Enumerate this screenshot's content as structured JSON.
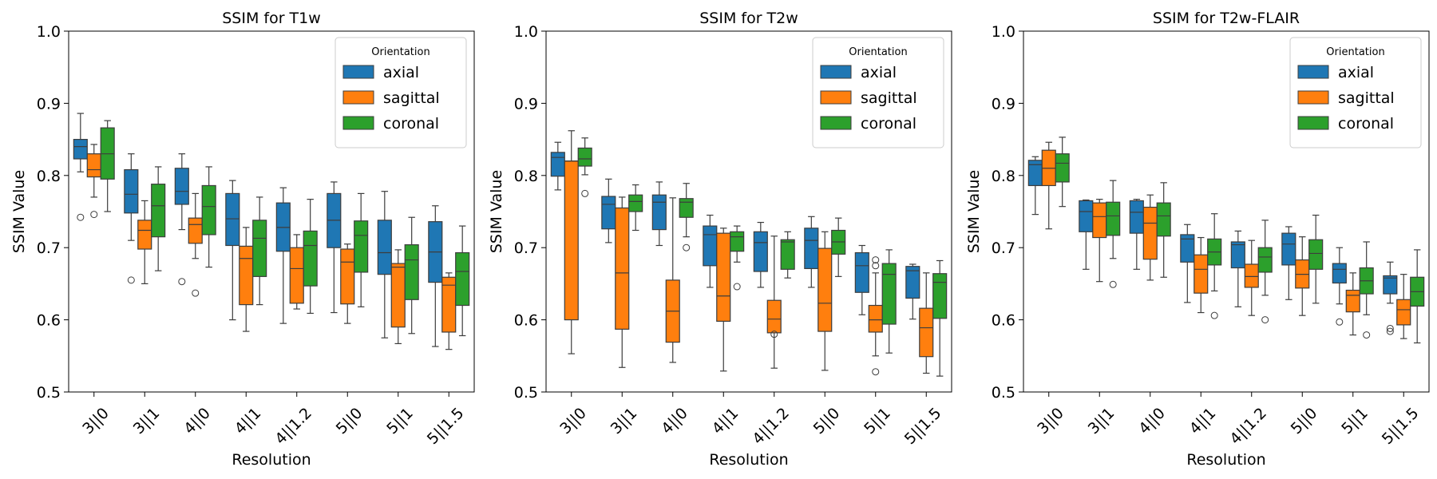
{
  "chart_data": [
    {
      "type": "boxplot",
      "title": "SSIM for T1w",
      "xlabel": "Resolution",
      "ylabel": "SSIM Value",
      "ylim": [
        0.5,
        1.0
      ],
      "yticks": [
        "0.5",
        "0.6",
        "0.7",
        "0.8",
        "0.9",
        "1.0"
      ],
      "categories": [
        "3||0",
        "3||1",
        "4||0",
        "4||1",
        "4||1.2",
        "5||0",
        "5||1",
        "5||1.5"
      ],
      "legend": {
        "title": "Orientation",
        "position": "top-right"
      },
      "series": [
        {
          "name": "axial",
          "color": "#1f77b4",
          "boxes": [
            {
              "lw": 0.805,
              "q1": 0.823,
              "med": 0.84,
              "q3": 0.85,
              "uw": 0.886,
              "fliers": [
                0.742
              ]
            },
            {
              "lw": 0.71,
              "q1": 0.748,
              "med": 0.774,
              "q3": 0.808,
              "uw": 0.83,
              "fliers": [
                0.655
              ]
            },
            {
              "lw": 0.725,
              "q1": 0.76,
              "med": 0.778,
              "q3": 0.81,
              "uw": 0.83,
              "fliers": [
                0.653
              ]
            },
            {
              "lw": 0.6,
              "q1": 0.703,
              "med": 0.74,
              "q3": 0.775,
              "uw": 0.793,
              "fliers": []
            },
            {
              "lw": 0.595,
              "q1": 0.695,
              "med": 0.728,
              "q3": 0.762,
              "uw": 0.783,
              "fliers": []
            },
            {
              "lw": 0.61,
              "q1": 0.7,
              "med": 0.738,
              "q3": 0.775,
              "uw": 0.791,
              "fliers": []
            },
            {
              "lw": 0.575,
              "q1": 0.663,
              "med": 0.693,
              "q3": 0.738,
              "uw": 0.778,
              "fliers": []
            },
            {
              "lw": 0.563,
              "q1": 0.652,
              "med": 0.694,
              "q3": 0.736,
              "uw": 0.758,
              "fliers": []
            }
          ]
        },
        {
          "name": "sagittal",
          "color": "#ff7f0e",
          "boxes": [
            {
              "lw": 0.77,
              "q1": 0.798,
              "med": 0.808,
              "q3": 0.83,
              "uw": 0.843,
              "fliers": [
                0.746
              ]
            },
            {
              "lw": 0.65,
              "q1": 0.698,
              "med": 0.724,
              "q3": 0.738,
              "uw": 0.765,
              "fliers": []
            },
            {
              "lw": 0.685,
              "q1": 0.706,
              "med": 0.732,
              "q3": 0.741,
              "uw": 0.775,
              "fliers": [
                0.637
              ]
            },
            {
              "lw": 0.584,
              "q1": 0.621,
              "med": 0.685,
              "q3": 0.702,
              "uw": 0.728,
              "fliers": []
            },
            {
              "lw": 0.615,
              "q1": 0.623,
              "med": 0.671,
              "q3": 0.7,
              "uw": 0.718,
              "fliers": []
            },
            {
              "lw": 0.595,
              "q1": 0.622,
              "med": 0.68,
              "q3": 0.698,
              "uw": 0.705,
              "fliers": []
            },
            {
              "lw": 0.567,
              "q1": 0.59,
              "med": 0.673,
              "q3": 0.678,
              "uw": 0.697,
              "fliers": []
            },
            {
              "lw": 0.559,
              "q1": 0.583,
              "med": 0.648,
              "q3": 0.659,
              "uw": 0.665,
              "fliers": []
            }
          ]
        },
        {
          "name": "coronal",
          "color": "#2ca02c",
          "boxes": [
            {
              "lw": 0.75,
              "q1": 0.795,
              "med": 0.83,
              "q3": 0.866,
              "uw": 0.876,
              "fliers": []
            },
            {
              "lw": 0.668,
              "q1": 0.715,
              "med": 0.758,
              "q3": 0.788,
              "uw": 0.812,
              "fliers": []
            },
            {
              "lw": 0.673,
              "q1": 0.718,
              "med": 0.757,
              "q3": 0.786,
              "uw": 0.812,
              "fliers": []
            },
            {
              "lw": 0.621,
              "q1": 0.66,
              "med": 0.713,
              "q3": 0.738,
              "uw": 0.77,
              "fliers": []
            },
            {
              "lw": 0.609,
              "q1": 0.647,
              "med": 0.703,
              "q3": 0.723,
              "uw": 0.767,
              "fliers": []
            },
            {
              "lw": 0.618,
              "q1": 0.666,
              "med": 0.717,
              "q3": 0.737,
              "uw": 0.775,
              "fliers": []
            },
            {
              "lw": 0.581,
              "q1": 0.628,
              "med": 0.683,
              "q3": 0.704,
              "uw": 0.742,
              "fliers": []
            },
            {
              "lw": 0.578,
              "q1": 0.62,
              "med": 0.667,
              "q3": 0.693,
              "uw": 0.73,
              "fliers": []
            }
          ]
        }
      ]
    },
    {
      "type": "boxplot",
      "title": "SSIM for T2w",
      "xlabel": "Resolution",
      "ylabel": "SSIM Value",
      "ylim": [
        0.5,
        1.0
      ],
      "yticks": [
        "0.5",
        "0.6",
        "0.7",
        "0.8",
        "0.9",
        "1.0"
      ],
      "categories": [
        "3||0",
        "3||1",
        "4||0",
        "4||1",
        "4||1.2",
        "5||0",
        "5||1",
        "5||1.5"
      ],
      "legend": {
        "title": "Orientation",
        "position": "top-right"
      },
      "series": [
        {
          "name": "axial",
          "color": "#1f77b4",
          "boxes": [
            {
              "lw": 0.78,
              "q1": 0.799,
              "med": 0.825,
              "q3": 0.832,
              "uw": 0.846,
              "fliers": []
            },
            {
              "lw": 0.707,
              "q1": 0.726,
              "med": 0.76,
              "q3": 0.771,
              "uw": 0.795,
              "fliers": []
            },
            {
              "lw": 0.703,
              "q1": 0.725,
              "med": 0.763,
              "q3": 0.773,
              "uw": 0.791,
              "fliers": []
            },
            {
              "lw": 0.645,
              "q1": 0.675,
              "med": 0.718,
              "q3": 0.73,
              "uw": 0.745,
              "fliers": []
            },
            {
              "lw": 0.645,
              "q1": 0.667,
              "med": 0.707,
              "q3": 0.722,
              "uw": 0.735,
              "fliers": []
            },
            {
              "lw": 0.645,
              "q1": 0.671,
              "med": 0.71,
              "q3": 0.727,
              "uw": 0.743,
              "fliers": []
            },
            {
              "lw": 0.607,
              "q1": 0.638,
              "med": 0.675,
              "q3": 0.693,
              "uw": 0.703,
              "fliers": []
            },
            {
              "lw": 0.601,
              "q1": 0.63,
              "med": 0.668,
              "q3": 0.674,
              "uw": 0.677,
              "fliers": []
            }
          ]
        },
        {
          "name": "sagittal",
          "color": "#ff7f0e",
          "boxes": [
            {
              "lw": 0.553,
              "q1": 0.6,
              "med": 0.82,
              "q3": 0.82,
              "uw": 0.862,
              "fliers": []
            },
            {
              "lw": 0.534,
              "q1": 0.587,
              "med": 0.665,
              "q3": 0.755,
              "uw": 0.77,
              "fliers": []
            },
            {
              "lw": 0.541,
              "q1": 0.569,
              "med": 0.612,
              "q3": 0.655,
              "uw": 0.769,
              "fliers": []
            },
            {
              "lw": 0.529,
              "q1": 0.598,
              "med": 0.633,
              "q3": 0.72,
              "uw": 0.727,
              "fliers": []
            },
            {
              "lw": 0.533,
              "q1": 0.582,
              "med": 0.601,
              "q3": 0.627,
              "uw": 0.716,
              "fliers": [
                0.58
              ]
            },
            {
              "lw": 0.53,
              "q1": 0.584,
              "med": 0.623,
              "q3": 0.699,
              "uw": 0.722,
              "fliers": []
            },
            {
              "lw": 0.55,
              "q1": 0.583,
              "med": 0.6,
              "q3": 0.62,
              "uw": 0.665,
              "fliers": [
                0.683,
                0.675,
                0.528
              ]
            },
            {
              "lw": 0.526,
              "q1": 0.549,
              "med": 0.589,
              "q3": 0.616,
              "uw": 0.665,
              "fliers": []
            }
          ]
        },
        {
          "name": "coronal",
          "color": "#2ca02c",
          "boxes": [
            {
              "lw": 0.801,
              "q1": 0.813,
              "med": 0.823,
              "q3": 0.838,
              "uw": 0.852,
              "fliers": [
                0.775
              ]
            },
            {
              "lw": 0.724,
              "q1": 0.75,
              "med": 0.764,
              "q3": 0.773,
              "uw": 0.787,
              "fliers": []
            },
            {
              "lw": 0.715,
              "q1": 0.742,
              "med": 0.763,
              "q3": 0.768,
              "uw": 0.789,
              "fliers": [
                0.7
              ]
            },
            {
              "lw": 0.68,
              "q1": 0.695,
              "med": 0.715,
              "q3": 0.722,
              "uw": 0.73,
              "fliers": [
                0.646
              ]
            },
            {
              "lw": 0.658,
              "q1": 0.67,
              "med": 0.708,
              "q3": 0.711,
              "uw": 0.722,
              "fliers": []
            },
            {
              "lw": 0.66,
              "q1": 0.691,
              "med": 0.708,
              "q3": 0.724,
              "uw": 0.741,
              "fliers": []
            },
            {
              "lw": 0.554,
              "q1": 0.594,
              "med": 0.663,
              "q3": 0.678,
              "uw": 0.697,
              "fliers": []
            },
            {
              "lw": 0.522,
              "q1": 0.602,
              "med": 0.652,
              "q3": 0.664,
              "uw": 0.682,
              "fliers": []
            }
          ]
        }
      ]
    },
    {
      "type": "boxplot",
      "title": "SSIM for T2w-FLAIR",
      "xlabel": "Resolution",
      "ylabel": "SSIM Value",
      "ylim": [
        0.5,
        1.0
      ],
      "yticks": [
        "0.5",
        "0.6",
        "0.7",
        "0.8",
        "0.9",
        "1.0"
      ],
      "categories": [
        "3||0",
        "3||1",
        "4||0",
        "4||1",
        "4||1.2",
        "5||0",
        "5||1",
        "5||1.5"
      ],
      "legend": {
        "title": "Orientation",
        "position": "top-right"
      },
      "series": [
        {
          "name": "axial",
          "color": "#1f77b4",
          "boxes": [
            {
              "lw": 0.746,
              "q1": 0.786,
              "med": 0.815,
              "q3": 0.821,
              "uw": 0.826,
              "fliers": []
            },
            {
              "lw": 0.67,
              "q1": 0.722,
              "med": 0.75,
              "q3": 0.765,
              "uw": 0.766,
              "fliers": []
            },
            {
              "lw": 0.67,
              "q1": 0.72,
              "med": 0.749,
              "q3": 0.765,
              "uw": 0.767,
              "fliers": []
            },
            {
              "lw": 0.624,
              "q1": 0.68,
              "med": 0.712,
              "q3": 0.718,
              "uw": 0.732,
              "fliers": []
            },
            {
              "lw": 0.618,
              "q1": 0.672,
              "med": 0.704,
              "q3": 0.708,
              "uw": 0.723,
              "fliers": []
            },
            {
              "lw": 0.628,
              "q1": 0.676,
              "med": 0.705,
              "q3": 0.72,
              "uw": 0.729,
              "fliers": []
            },
            {
              "lw": 0.622,
              "q1": 0.651,
              "med": 0.67,
              "q3": 0.678,
              "uw": 0.7,
              "fliers": [
                0.597
              ]
            },
            {
              "lw": 0.623,
              "q1": 0.636,
              "med": 0.658,
              "q3": 0.661,
              "uw": 0.68,
              "fliers": [
                0.588,
                0.584
              ]
            }
          ]
        },
        {
          "name": "sagittal",
          "color": "#ff7f0e",
          "boxes": [
            {
              "lw": 0.726,
              "q1": 0.786,
              "med": 0.81,
              "q3": 0.835,
              "uw": 0.846,
              "fliers": []
            },
            {
              "lw": 0.653,
              "q1": 0.714,
              "med": 0.743,
              "q3": 0.762,
              "uw": 0.767,
              "fliers": []
            },
            {
              "lw": 0.655,
              "q1": 0.684,
              "med": 0.734,
              "q3": 0.756,
              "uw": 0.773,
              "fliers": []
            },
            {
              "lw": 0.61,
              "q1": 0.637,
              "med": 0.67,
              "q3": 0.69,
              "uw": 0.714,
              "fliers": []
            },
            {
              "lw": 0.606,
              "q1": 0.645,
              "med": 0.66,
              "q3": 0.677,
              "uw": 0.71,
              "fliers": []
            },
            {
              "lw": 0.606,
              "q1": 0.644,
              "med": 0.663,
              "q3": 0.683,
              "uw": 0.715,
              "fliers": []
            },
            {
              "lw": 0.579,
              "q1": 0.611,
              "med": 0.634,
              "q3": 0.641,
              "uw": 0.665,
              "fliers": []
            },
            {
              "lw": 0.574,
              "q1": 0.593,
              "med": 0.614,
              "q3": 0.628,
              "uw": 0.663,
              "fliers": []
            }
          ]
        },
        {
          "name": "coronal",
          "color": "#2ca02c",
          "boxes": [
            {
              "lw": 0.757,
              "q1": 0.791,
              "med": 0.817,
              "q3": 0.83,
              "uw": 0.853,
              "fliers": []
            },
            {
              "lw": 0.685,
              "q1": 0.717,
              "med": 0.744,
              "q3": 0.763,
              "uw": 0.793,
              "fliers": [
                0.649
              ]
            },
            {
              "lw": 0.659,
              "q1": 0.716,
              "med": 0.744,
              "q3": 0.762,
              "uw": 0.79,
              "fliers": []
            },
            {
              "lw": 0.64,
              "q1": 0.676,
              "med": 0.694,
              "q3": 0.712,
              "uw": 0.747,
              "fliers": [
                0.606
              ]
            },
            {
              "lw": 0.634,
              "q1": 0.666,
              "med": 0.687,
              "q3": 0.7,
              "uw": 0.738,
              "fliers": [
                0.6
              ]
            },
            {
              "lw": 0.623,
              "q1": 0.67,
              "med": 0.692,
              "q3": 0.711,
              "uw": 0.745,
              "fliers": []
            },
            {
              "lw": 0.607,
              "q1": 0.636,
              "med": 0.654,
              "q3": 0.672,
              "uw": 0.708,
              "fliers": [
                0.579
              ]
            },
            {
              "lw": 0.568,
              "q1": 0.619,
              "med": 0.639,
              "q3": 0.659,
              "uw": 0.697,
              "fliers": []
            }
          ]
        }
      ]
    }
  ]
}
